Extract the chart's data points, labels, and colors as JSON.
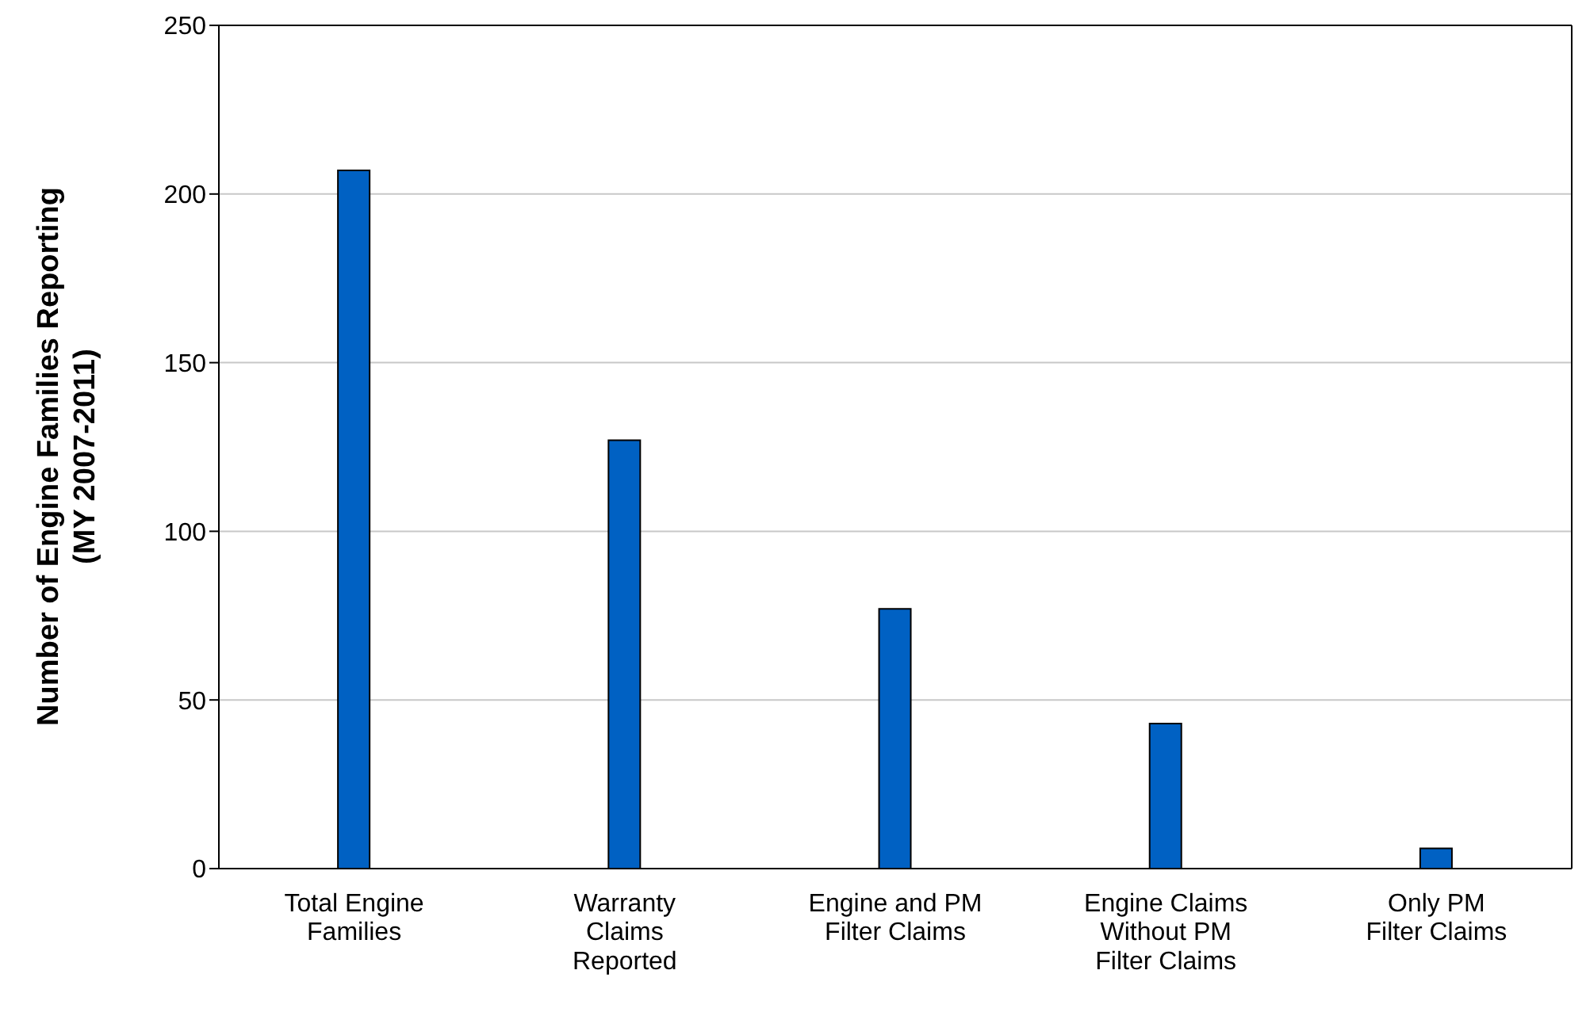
{
  "chart_data": {
    "type": "bar",
    "ylabel": "Number of Engine Families Reporting (MY 2007-2011)",
    "categories": [
      "Total Engine Families",
      "Warranty Claims Reported",
      "Engine and PM Filter Claims",
      "Engine Claims Without PM Filter Claims",
      "Only PM Filter Claims"
    ],
    "values": [
      207,
      127,
      77,
      43,
      6
    ],
    "color": "#0061c3",
    "ylim": [
      0,
      250
    ],
    "yticks": [
      0,
      50,
      100,
      150,
      200,
      250
    ],
    "grid": "y"
  }
}
